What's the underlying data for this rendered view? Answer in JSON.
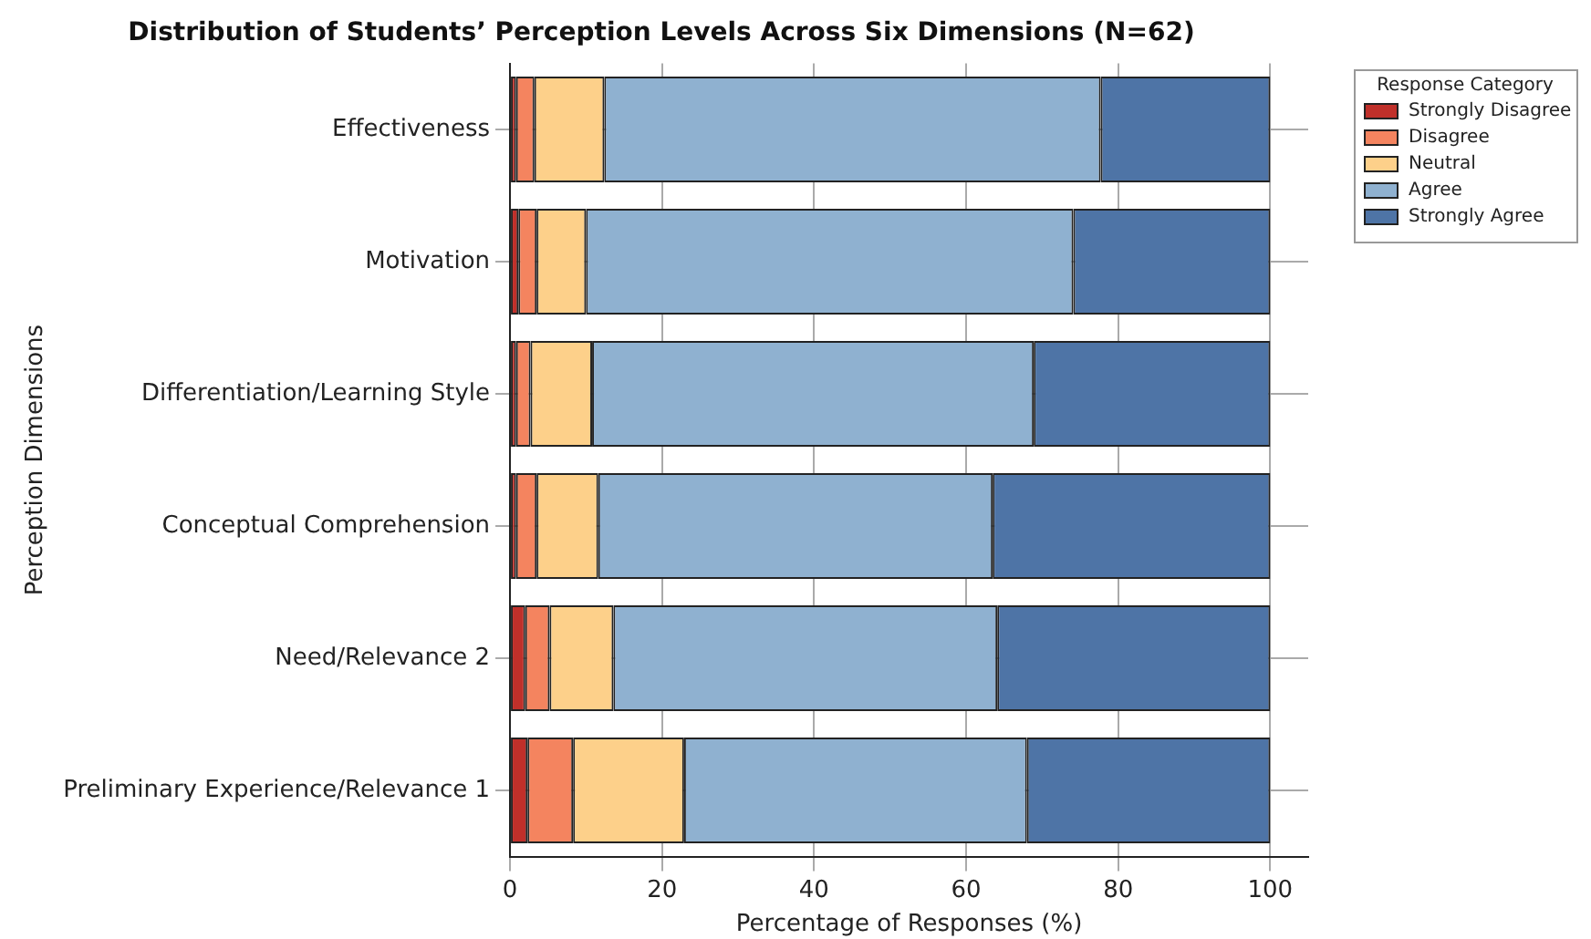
{
  "chart_data": {
    "type": "bar",
    "orientation": "horizontal",
    "stacked": true,
    "title": "Distribution of Students’ Perception Levels Across Six Dimensions (N=62)",
    "xlabel": "Percentage of Responses (%)",
    "ylabel": "Perception Dimensions",
    "legend_title": "Response Category",
    "legend": "top right",
    "grid": true,
    "categories": [
      "Effectiveness",
      "Motivation",
      "Differentiation/Learning Style",
      "Conceptual Comprehension",
      "Need/Relevance 2",
      "Preliminary Experience/Relevance 1"
    ],
    "xlim": [
      0,
      105
    ],
    "xticks": [
      0,
      20,
      40,
      60,
      80,
      100
    ],
    "series": [
      {
        "name": "Strongly Disagree",
        "color": "#c0302a",
        "values": [
          0.8,
          1.1,
          0.8,
          0.8,
          2.0,
          2.3
        ]
      },
      {
        "name": "Disagree",
        "color": "#f4845f",
        "values": [
          2.4,
          2.4,
          1.9,
          2.7,
          3.2,
          6.0
        ]
      },
      {
        "name": "Neutral",
        "color": "#fdd08a",
        "values": [
          9.2,
          6.5,
          8.1,
          8.1,
          8.4,
          14.6
        ]
      },
      {
        "name": "Agree",
        "color": "#8fb1d0",
        "values": [
          65.3,
          64.1,
          58.1,
          51.9,
          50.5,
          45.1
        ]
      },
      {
        "name": "Strongly Agree",
        "color": "#4e74a6",
        "values": [
          22.3,
          25.9,
          31.1,
          36.5,
          35.9,
          32.0
        ]
      }
    ]
  }
}
